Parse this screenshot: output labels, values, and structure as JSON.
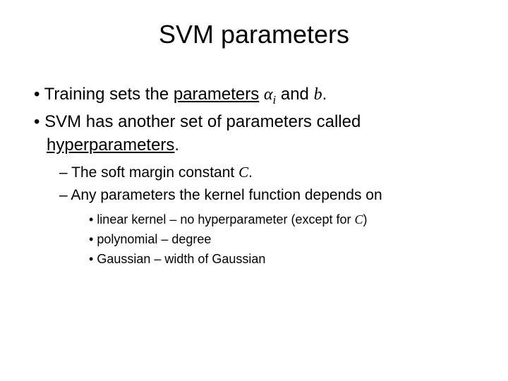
{
  "title": "SVM parameters",
  "b1_pre": "Training sets the ",
  "b1_param_word": "parameters",
  "b1_space": " ",
  "b1_alpha": "α",
  "b1_sub": "i",
  "b1_and": " and ",
  "b1_b": "b",
  "b1_period": ".",
  "b2_pre": "SVM has another set of parameters called ",
  "b2_hyper_word": "hyperparameters",
  "b2_period": ".",
  "s1_pre": "The soft margin constant ",
  "s1_C": "C",
  "s1_period": ".",
  "s2": "Any parameters the kernel function depends on",
  "t1_pre": "linear kernel – no hyperparameter (except for ",
  "t1_C": "C",
  "t1_post": ")",
  "t2": "polynomial – degree",
  "t3": "Gaussian – width of Gaussian",
  "colors": {
    "background": "#ffffff",
    "text": "#000000"
  },
  "fontsizes": {
    "title": 36,
    "level1": 24,
    "level2": 21,
    "level3": 18
  }
}
